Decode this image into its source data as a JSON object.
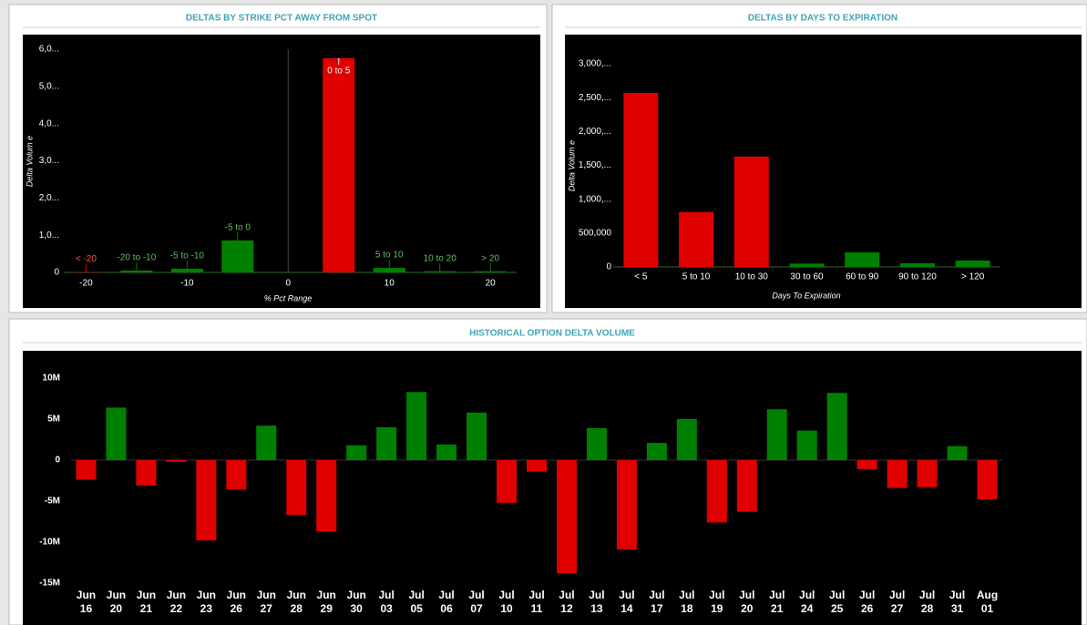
{
  "chart_data": [
    {
      "type": "bar",
      "title": "DELTAS BY STRIKE PCT AWAY FROM SPOT",
      "x_label": "% Pct Range",
      "y_label": "Delta Volum e",
      "categories": [
        "< -20",
        "-20 to -10",
        "-5 to -10",
        "-5 to 0",
        "0 to 5",
        "5 to 10",
        "10 to 20",
        "> 20"
      ],
      "x": [
        -20,
        -15,
        -10,
        -5,
        5,
        10,
        15,
        20
      ],
      "values": [
        10000,
        50000,
        100000,
        860000,
        5760000,
        120000,
        30000,
        30000
      ],
      "colors": [
        "#e00000",
        "#008000",
        "#008000",
        "#008000",
        "#e00000",
        "#008000",
        "#008000",
        "#008000"
      ],
      "xlim": [
        -22.2,
        22.6
      ],
      "xticks": [
        -20,
        -10,
        0,
        10,
        20
      ],
      "ylim": [
        0,
        6000000
      ],
      "yticks": [
        0,
        {
          "value": 1000000,
          "label": "1,0..."
        },
        {
          "value": 2000000,
          "label": "2,0..."
        },
        {
          "value": 3000000,
          "label": "3,0..."
        },
        {
          "value": 4000000,
          "label": "4,0..."
        },
        {
          "value": 5000000,
          "label": "5,0..."
        },
        {
          "value": 6000000,
          "label": "6,0..."
        }
      ]
    },
    {
      "type": "bar",
      "title": "DELTAS BY DAYS TO EXPIRATION",
      "x_label": "Days To Expiration",
      "y_label": "Delta Volum e",
      "categories": [
        "< 5",
        "5 to 10",
        "10 to 30",
        "30 to 60",
        "60 to 90",
        "90 to 120",
        "> 120"
      ],
      "values": [
        2570000,
        810000,
        1630000,
        50000,
        215000,
        55000,
        95000
      ],
      "colors": [
        "#e00000",
        "#e00000",
        "#e00000",
        "#008000",
        "#008000",
        "#008000",
        "#008000"
      ],
      "ylim": [
        0,
        3000000
      ],
      "yticks": [
        0,
        {
          "value": 500000,
          "label": "500,000"
        },
        {
          "value": 1000000,
          "label": "1,000,..."
        },
        {
          "value": 1500000,
          "label": "1,500,..."
        },
        {
          "value": 2000000,
          "label": "2,000,..."
        },
        {
          "value": 2500000,
          "label": "2,500,..."
        },
        {
          "value": 3000000,
          "label": "3,000,..."
        }
      ]
    },
    {
      "type": "bar",
      "title": "HISTORICAL OPTION DELTA VOLUME",
      "categories": [
        "Jun 16",
        "Jun 20",
        "Jun 21",
        "Jun 22",
        "Jun 23",
        "Jun 26",
        "Jun 27",
        "Jun 28",
        "Jun 29",
        "Jun 30",
        "Jul 03",
        "Jul 05",
        "Jul 06",
        "Jul 07",
        "Jul 10",
        "Jul 11",
        "Jul 12",
        "Jul 13",
        "Jul 14",
        "Jul 17",
        "Jul 18",
        "Jul 19",
        "Jul 20",
        "Jul 21",
        "Jul 24",
        "Jul 25",
        "Jul 26",
        "Jul 27",
        "Jul 28",
        "Jul 31",
        "Aug 01"
      ],
      "values": [
        -2400000,
        6400000,
        -3100000,
        -200000,
        -9800000,
        -3600000,
        4200000,
        -6700000,
        -8700000,
        1800000,
        4000000,
        8300000,
        1900000,
        5800000,
        -5200000,
        -1400000,
        -13800000,
        3900000,
        -10900000,
        2100000,
        5000000,
        -7600000,
        -6300000,
        6200000,
        3600000,
        8200000,
        -1100000,
        -3400000,
        -3300000,
        1700000,
        -4800000
      ],
      "positive_color": "#008000",
      "negative_color": "#e00000",
      "ylim": [
        -15000000,
        10000000
      ],
      "yticks": [
        {
          "value": -15000000,
          "label": "-15M"
        },
        {
          "value": -10000000,
          "label": "-10M"
        },
        {
          "value": -5000000,
          "label": "-5M"
        },
        0,
        {
          "value": 5000000,
          "label": "5M"
        },
        {
          "value": 10000000,
          "label": "10M"
        }
      ]
    }
  ]
}
